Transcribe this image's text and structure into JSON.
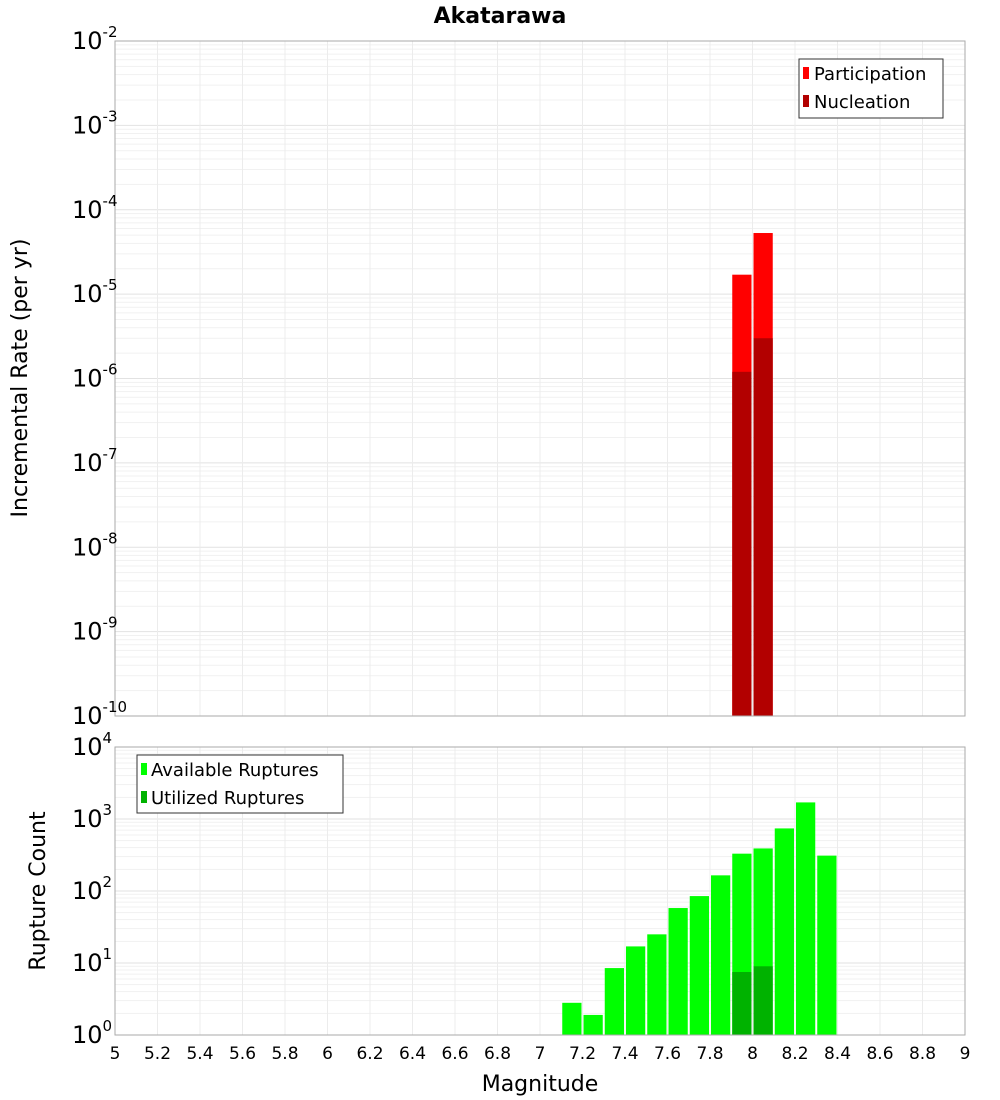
{
  "chart_data": [
    {
      "type": "bar",
      "title": "Akatarawa",
      "xlabel": "",
      "ylabel": "Incremental Rate (per yr)",
      "yscale": "log",
      "ylim_exponents": [
        -10,
        -2
      ],
      "y_tick_exponents": [
        -10,
        -9,
        -8,
        -7,
        -6,
        -5,
        -4,
        -3,
        -2
      ],
      "xlim": [
        5,
        9
      ],
      "grid": true,
      "legend_position": "top-right",
      "bar_width": 0.1,
      "series": [
        {
          "name": "Participation",
          "color": "#ff0000",
          "x": [
            7.95,
            8.05
          ],
          "values": [
            1.7e-05,
            5.3e-05
          ]
        },
        {
          "name": "Nucleation",
          "color": "#b20000",
          "x": [
            7.95,
            8.05
          ],
          "values": [
            1.2e-06,
            3e-06
          ]
        }
      ]
    },
    {
      "type": "bar",
      "title": "",
      "xlabel": "Magnitude",
      "ylabel": "Rupture Count",
      "yscale": "log",
      "ylim_exponents": [
        0,
        4
      ],
      "y_tick_exponents": [
        0,
        1,
        2,
        3,
        4
      ],
      "xlim": [
        5,
        9
      ],
      "x_tick_labels": [
        "5",
        "5.2",
        "5.4",
        "5.6",
        "5.8",
        "6",
        "6.2",
        "6.4",
        "6.6",
        "6.8",
        "7",
        "7.2",
        "7.4",
        "7.6",
        "7.8",
        "8",
        "8.2",
        "8.4",
        "8.6",
        "8.8",
        "9"
      ],
      "grid": true,
      "legend_position": "top-left",
      "bar_width": 0.1,
      "series": [
        {
          "name": "Available Ruptures",
          "color": "#00ff00",
          "x": [
            6.75,
            7.15,
            7.25,
            7.35,
            7.45,
            7.55,
            7.65,
            7.75,
            7.85,
            7.95,
            8.05,
            8.15,
            8.25,
            8.35
          ],
          "values": [
            1,
            2.8,
            1.9,
            8.5,
            17,
            25,
            58,
            85,
            165,
            330,
            390,
            740,
            1700,
            310
          ]
        },
        {
          "name": "Utilized Ruptures",
          "color": "#00b200",
          "x": [
            7.95,
            8.05
          ],
          "values": [
            7.5,
            9
          ]
        }
      ]
    }
  ]
}
